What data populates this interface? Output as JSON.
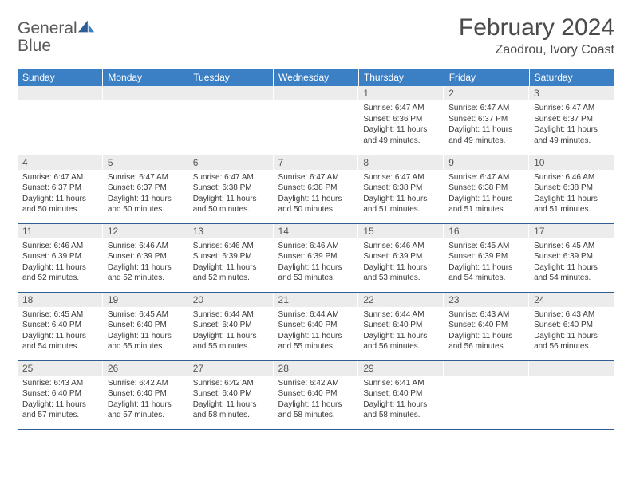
{
  "brand": {
    "part1": "General",
    "part2": "Blue"
  },
  "title": "February 2024",
  "location": "Zaodrou, Ivory Coast",
  "colors": {
    "header_bg": "#3b7fc4",
    "header_text": "#ffffff",
    "daynum_bg": "#ececec",
    "rule": "#2f5e93",
    "body_text": "#3a3a3a",
    "title_text": "#4a4a4a"
  },
  "dayHeaders": [
    "Sunday",
    "Monday",
    "Tuesday",
    "Wednesday",
    "Thursday",
    "Friday",
    "Saturday"
  ],
  "weeks": [
    [
      {
        "n": "",
        "sr": "",
        "ss": "",
        "dl": ""
      },
      {
        "n": "",
        "sr": "",
        "ss": "",
        "dl": ""
      },
      {
        "n": "",
        "sr": "",
        "ss": "",
        "dl": ""
      },
      {
        "n": "",
        "sr": "",
        "ss": "",
        "dl": ""
      },
      {
        "n": "1",
        "sr": "Sunrise: 6:47 AM",
        "ss": "Sunset: 6:36 PM",
        "dl": "Daylight: 11 hours and 49 minutes."
      },
      {
        "n": "2",
        "sr": "Sunrise: 6:47 AM",
        "ss": "Sunset: 6:37 PM",
        "dl": "Daylight: 11 hours and 49 minutes."
      },
      {
        "n": "3",
        "sr": "Sunrise: 6:47 AM",
        "ss": "Sunset: 6:37 PM",
        "dl": "Daylight: 11 hours and 49 minutes."
      }
    ],
    [
      {
        "n": "4",
        "sr": "Sunrise: 6:47 AM",
        "ss": "Sunset: 6:37 PM",
        "dl": "Daylight: 11 hours and 50 minutes."
      },
      {
        "n": "5",
        "sr": "Sunrise: 6:47 AM",
        "ss": "Sunset: 6:37 PM",
        "dl": "Daylight: 11 hours and 50 minutes."
      },
      {
        "n": "6",
        "sr": "Sunrise: 6:47 AM",
        "ss": "Sunset: 6:38 PM",
        "dl": "Daylight: 11 hours and 50 minutes."
      },
      {
        "n": "7",
        "sr": "Sunrise: 6:47 AM",
        "ss": "Sunset: 6:38 PM",
        "dl": "Daylight: 11 hours and 50 minutes."
      },
      {
        "n": "8",
        "sr": "Sunrise: 6:47 AM",
        "ss": "Sunset: 6:38 PM",
        "dl": "Daylight: 11 hours and 51 minutes."
      },
      {
        "n": "9",
        "sr": "Sunrise: 6:47 AM",
        "ss": "Sunset: 6:38 PM",
        "dl": "Daylight: 11 hours and 51 minutes."
      },
      {
        "n": "10",
        "sr": "Sunrise: 6:46 AM",
        "ss": "Sunset: 6:38 PM",
        "dl": "Daylight: 11 hours and 51 minutes."
      }
    ],
    [
      {
        "n": "11",
        "sr": "Sunrise: 6:46 AM",
        "ss": "Sunset: 6:39 PM",
        "dl": "Daylight: 11 hours and 52 minutes."
      },
      {
        "n": "12",
        "sr": "Sunrise: 6:46 AM",
        "ss": "Sunset: 6:39 PM",
        "dl": "Daylight: 11 hours and 52 minutes."
      },
      {
        "n": "13",
        "sr": "Sunrise: 6:46 AM",
        "ss": "Sunset: 6:39 PM",
        "dl": "Daylight: 11 hours and 52 minutes."
      },
      {
        "n": "14",
        "sr": "Sunrise: 6:46 AM",
        "ss": "Sunset: 6:39 PM",
        "dl": "Daylight: 11 hours and 53 minutes."
      },
      {
        "n": "15",
        "sr": "Sunrise: 6:46 AM",
        "ss": "Sunset: 6:39 PM",
        "dl": "Daylight: 11 hours and 53 minutes."
      },
      {
        "n": "16",
        "sr": "Sunrise: 6:45 AM",
        "ss": "Sunset: 6:39 PM",
        "dl": "Daylight: 11 hours and 54 minutes."
      },
      {
        "n": "17",
        "sr": "Sunrise: 6:45 AM",
        "ss": "Sunset: 6:39 PM",
        "dl": "Daylight: 11 hours and 54 minutes."
      }
    ],
    [
      {
        "n": "18",
        "sr": "Sunrise: 6:45 AM",
        "ss": "Sunset: 6:40 PM",
        "dl": "Daylight: 11 hours and 54 minutes."
      },
      {
        "n": "19",
        "sr": "Sunrise: 6:45 AM",
        "ss": "Sunset: 6:40 PM",
        "dl": "Daylight: 11 hours and 55 minutes."
      },
      {
        "n": "20",
        "sr": "Sunrise: 6:44 AM",
        "ss": "Sunset: 6:40 PM",
        "dl": "Daylight: 11 hours and 55 minutes."
      },
      {
        "n": "21",
        "sr": "Sunrise: 6:44 AM",
        "ss": "Sunset: 6:40 PM",
        "dl": "Daylight: 11 hours and 55 minutes."
      },
      {
        "n": "22",
        "sr": "Sunrise: 6:44 AM",
        "ss": "Sunset: 6:40 PM",
        "dl": "Daylight: 11 hours and 56 minutes."
      },
      {
        "n": "23",
        "sr": "Sunrise: 6:43 AM",
        "ss": "Sunset: 6:40 PM",
        "dl": "Daylight: 11 hours and 56 minutes."
      },
      {
        "n": "24",
        "sr": "Sunrise: 6:43 AM",
        "ss": "Sunset: 6:40 PM",
        "dl": "Daylight: 11 hours and 56 minutes."
      }
    ],
    [
      {
        "n": "25",
        "sr": "Sunrise: 6:43 AM",
        "ss": "Sunset: 6:40 PM",
        "dl": "Daylight: 11 hours and 57 minutes."
      },
      {
        "n": "26",
        "sr": "Sunrise: 6:42 AM",
        "ss": "Sunset: 6:40 PM",
        "dl": "Daylight: 11 hours and 57 minutes."
      },
      {
        "n": "27",
        "sr": "Sunrise: 6:42 AM",
        "ss": "Sunset: 6:40 PM",
        "dl": "Daylight: 11 hours and 58 minutes."
      },
      {
        "n": "28",
        "sr": "Sunrise: 6:42 AM",
        "ss": "Sunset: 6:40 PM",
        "dl": "Daylight: 11 hours and 58 minutes."
      },
      {
        "n": "29",
        "sr": "Sunrise: 6:41 AM",
        "ss": "Sunset: 6:40 PM",
        "dl": "Daylight: 11 hours and 58 minutes."
      },
      {
        "n": "",
        "sr": "",
        "ss": "",
        "dl": ""
      },
      {
        "n": "",
        "sr": "",
        "ss": "",
        "dl": ""
      }
    ]
  ]
}
